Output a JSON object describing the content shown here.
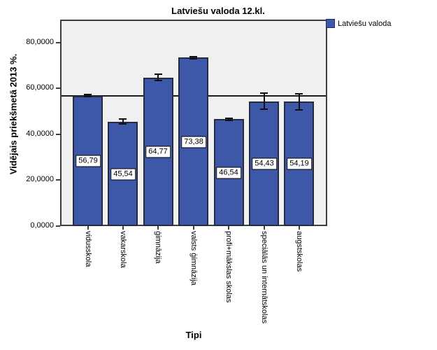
{
  "chart_data": {
    "type": "bar",
    "title": "Latviešu valoda 12.kl.",
    "xlabel": "Tipi",
    "ylabel": "Vidējais priekšmetā 2013 %.",
    "series_name": "Latviešu valoda",
    "legend_position": "top-right",
    "grid": false,
    "categories": [
      "vidusskola",
      "vakarskola",
      "ģimnāzija",
      "valsts ģimnāzija",
      "profi+mākslas skolas",
      "speciālās un internātskolas",
      "augstskolas"
    ],
    "values": [
      56.79,
      45.54,
      64.77,
      73.38,
      46.54,
      54.43,
      54.19
    ],
    "value_labels": [
      "56,79",
      "45,54",
      "64,77",
      "73,38",
      "46,54",
      "54,43",
      "54,19"
    ],
    "error_bars_plus_minus": [
      0.5,
      1.1,
      1.4,
      0.5,
      0.5,
      3.6,
      3.6
    ],
    "reference_line_y": 56.79,
    "ylim": [
      0,
      90
    ],
    "ytick_values": [
      0,
      20,
      40,
      60,
      80
    ],
    "ytick_labels": [
      "0,0000",
      "20,0000",
      "40,0000",
      "60,0000",
      "80,0000"
    ],
    "decimal_separator": ",",
    "colors": {
      "bar_fill": "#3d58a8",
      "bar_border": "#262b40",
      "plot_bg": "#f0f0f0",
      "plot_border": "#3f3f3f",
      "reference_line": "#1c1c1c",
      "error_bar": "#111111",
      "legend_swatch_border": "#1f2a66"
    }
  }
}
